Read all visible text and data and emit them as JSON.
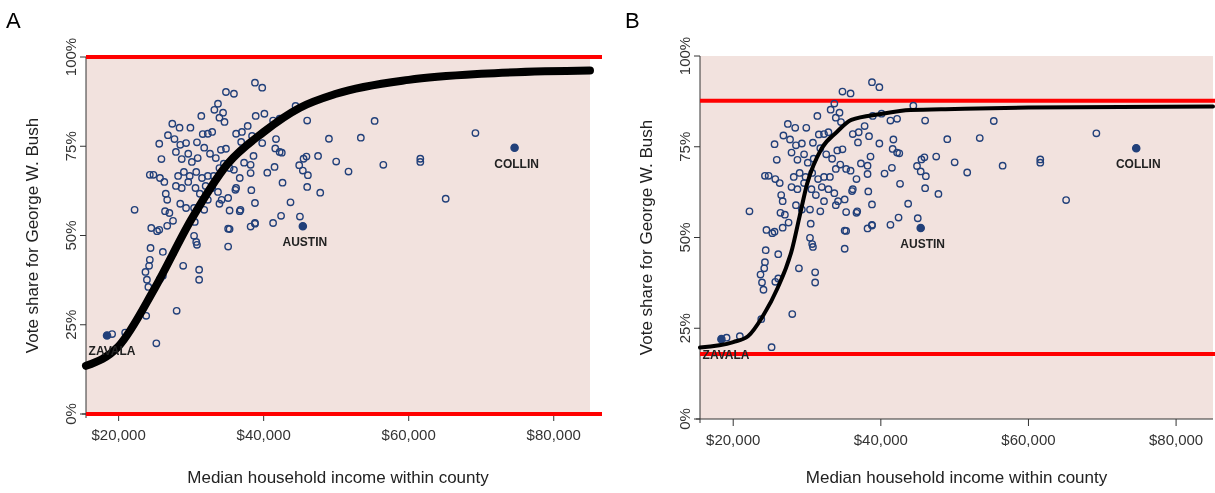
{
  "chart_data": [
    {
      "type": "scatter",
      "title": "A",
      "xlabel": "Median household income within county",
      "ylabel": "Vote share for George W. Bush",
      "xlim": [
        15500,
        85000
      ],
      "ylim": [
        0,
        100
      ],
      "xticks": [
        {
          "value": 20000,
          "label": "$20,000"
        },
        {
          "value": 40000,
          "label": "$40,000"
        },
        {
          "value": 60000,
          "label": "$60,000"
        },
        {
          "value": 80000,
          "label": "$80,000"
        }
      ],
      "yticks": [
        {
          "value": 0,
          "label": "0%"
        },
        {
          "value": 25,
          "label": "25%"
        },
        {
          "value": 50,
          "label": "50%"
        },
        {
          "value": 75,
          "label": "75%"
        },
        {
          "value": 100,
          "label": "100%"
        }
      ],
      "grid": false,
      "ref_lines": [
        {
          "axis": "y",
          "value": 0,
          "color": "#ff0000"
        },
        {
          "axis": "y",
          "value": 100,
          "color": "#ff0000"
        }
      ],
      "annotations": [
        {
          "text": "ZAVALA",
          "x": 18400,
          "y": 22
        },
        {
          "text": "AUSTIN",
          "x": 45400,
          "y": 52.6
        },
        {
          "text": "COLLIN",
          "x": 74600,
          "y": 74.6
        }
      ],
      "series": [
        {
          "marker": "circle",
          "color": "#22407a",
          "x": [
            69200,
            65100,
            61600,
            61600,
            56500,
            55300,
            53400,
            51700,
            50000,
            49000,
            47800,
            47500,
            46000,
            44400,
            46100,
            46000,
            45900,
            45500,
            44900,
            45400,
            45000,
            43700,
            42600,
            42400,
            41300,
            41500,
            42200,
            42500,
            41700,
            41600,
            40500,
            41300,
            40100,
            42200,
            39800,
            39800,
            38800,
            38900,
            38800,
            38800,
            38200,
            38300,
            38200,
            38600,
            38200,
            37300,
            36900,
            36800,
            36100,
            35300,
            35100,
            35300,
            34800,
            35900,
            22200,
            24300,
            24800,
            25600,
            25900,
            25700,
            26300,
            26500,
            26700,
            26400,
            27000,
            27400,
            26800,
            27700,
            28400,
            29900,
            31400,
            32300,
            33700,
            33900,
            34400,
            34600,
            33200,
            32900,
            31600,
            30800,
            29300,
            28500,
            27900,
            28700,
            29600,
            30100,
            30900,
            31800,
            32600,
            33400,
            34100,
            34800,
            34500,
            35300,
            36200,
            37000,
            37800,
            38400,
            33900,
            33100,
            32300,
            31500,
            30700,
            29800,
            29000,
            28200,
            27900,
            28700,
            29600,
            30600,
            31200,
            32000,
            32900,
            33700,
            34200,
            35100,
            36200,
            36700,
            35900,
            28500,
            29300,
            30400,
            31800,
            32300,
            33900,
            27500,
            26700,
            25600,
            24500,
            25300,
            24400,
            26100,
            24300,
            24200,
            23700,
            23900,
            24100,
            25700,
            26100,
            23800,
            28000,
            28900,
            30400,
            30700,
            30800,
            31100,
            31100,
            30500,
            25200,
            20900,
            19100,
            35100,
            36700,
            38800
          ],
          "values": [
            78.7,
            60.3,
            71.5,
            70.6,
            69.8,
            82.1,
            77.4,
            67.9,
            70.7,
            77.1,
            62,
            72.3,
            82.2,
            86.3,
            66.9,
            63.6,
            72.1,
            71.5,
            69.7,
            68.2,
            55.3,
            59.3,
            64.8,
            55.5,
            53.5,
            69.2,
            73.4,
            73.2,
            77,
            74.4,
            67.6,
            82.2,
            84.1,
            82.7,
            75.9,
            91.4,
            92.8,
            83.5,
            59.1,
            53.5,
            52.5,
            62.7,
            67.5,
            72.3,
            69.8,
            70.4,
            76.2,
            57.2,
            62.8,
            51.8,
            46.9,
            57,
            90.2,
            89.7,
            57.2,
            67,
            67,
            75.7,
            71.4,
            66.1,
            65,
            61.7,
            60,
            56.8,
            56.3,
            81.3,
            78.1,
            77,
            80.2,
            80.2,
            83.5,
            78.5,
            86.9,
            83,
            84.4,
            81.8,
            85.2,
            79,
            78.4,
            76.1,
            75.9,
            75.4,
            73.4,
            71.4,
            72.9,
            70.6,
            71.7,
            74.6,
            72.9,
            71.7,
            74,
            74.3,
            70.1,
            68.9,
            78.5,
            79,
            80.7,
            77.9,
            68.9,
            66.7,
            66.7,
            66.1,
            67.8,
            66.7,
            67.8,
            66.7,
            63.9,
            63.3,
            65,
            63.3,
            61.7,
            63.9,
            63.3,
            62.2,
            60,
            60.5,
            63.3,
            66.1,
            68.4,
            58.9,
            57.7,
            57.7,
            57.2,
            60,
            58.9,
            54.1,
            52.7,
            51.6,
            52.1,
            51.2,
            46.5,
            45.4,
            43.2,
            41.5,
            39.8,
            37.6,
            35.6,
            37.8,
            38.7,
            27.5,
            28.9,
            41.5,
            49.9,
            48.2,
            47.4,
            40.4,
            37.6,
            53.8,
            19.8,
            22.8,
            22.4,
            51.9,
            56.8,
            53.3
          ]
        },
        {
          "marker": "circle",
          "color": "#22407a",
          "x": [
            18400,
            45400,
            74600
          ],
          "values": [
            22,
            52.6,
            74.6
          ]
        },
        {
          "type": "line",
          "color": "#000000",
          "x": [
            15500,
            20000,
            25000,
            30000,
            35000,
            40000,
            45000,
            50000,
            60000,
            70000,
            85000
          ],
          "values": [
            13.5,
            19,
            35.3,
            54.4,
            70,
            79,
            85.8,
            89.7,
            93.6,
            95.3,
            96.2
          ]
        }
      ]
    },
    {
      "type": "scatter",
      "title": "B",
      "xlabel": "Median household income within county",
      "ylabel": "Vote share for George W. Bush",
      "xlim": [
        15500,
        85000
      ],
      "ylim": [
        0,
        100
      ],
      "xticks": [
        {
          "value": 20000,
          "label": "$20,000"
        },
        {
          "value": 40000,
          "label": "$40,000"
        },
        {
          "value": 60000,
          "label": "$60,000"
        },
        {
          "value": 80000,
          "label": "$80,000"
        }
      ],
      "yticks": [
        {
          "value": 0,
          "label": "0%"
        },
        {
          "value": 25,
          "label": "25%"
        },
        {
          "value": 50,
          "label": "50%"
        },
        {
          "value": 75,
          "label": "75%"
        },
        {
          "value": 100,
          "label": "100%"
        }
      ],
      "grid": false,
      "ref_lines": [
        {
          "axis": "y",
          "value": 87.7,
          "color": "#ff0000"
        },
        {
          "axis": "y",
          "value": 17.9,
          "color": "#ff0000"
        }
      ],
      "annotations": [
        {
          "text": "ZAVALA",
          "x": 18400,
          "y": 22
        },
        {
          "text": "AUSTIN",
          "x": 45400,
          "y": 52.6
        },
        {
          "text": "COLLIN",
          "x": 74600,
          "y": 74.6
        }
      ],
      "series": [
        {
          "marker": "circle",
          "color": "#22407a",
          "x": [
            69200,
            65100,
            61600,
            61600,
            56500,
            55300,
            53400,
            51700,
            50000,
            49000,
            47800,
            47500,
            46000,
            44400,
            46100,
            46000,
            45900,
            45500,
            44900,
            45400,
            45000,
            43700,
            42600,
            42400,
            41300,
            41500,
            42200,
            42500,
            41700,
            41600,
            40500,
            41300,
            40100,
            42200,
            39800,
            39800,
            38800,
            38900,
            38800,
            38800,
            38200,
            38300,
            38200,
            38600,
            38200,
            37300,
            36900,
            36800,
            36100,
            35300,
            35100,
            35300,
            34800,
            35900,
            22200,
            24300,
            24800,
            25600,
            25900,
            25700,
            26300,
            26500,
            26700,
            26400,
            27000,
            27400,
            26800,
            27700,
            28400,
            29900,
            31400,
            32300,
            33700,
            33900,
            34400,
            34600,
            33200,
            32900,
            31600,
            30800,
            29300,
            28500,
            27900,
            28700,
            29600,
            30100,
            30900,
            31800,
            32600,
            33400,
            34100,
            34800,
            34500,
            35300,
            36200,
            37000,
            37800,
            38400,
            33900,
            33100,
            32300,
            31500,
            30700,
            29800,
            29000,
            28200,
            27900,
            28700,
            29600,
            30600,
            31200,
            32000,
            32900,
            33700,
            34200,
            35100,
            36200,
            36700,
            35900,
            28500,
            29300,
            30400,
            31800,
            32300,
            33900,
            27500,
            26700,
            25600,
            24500,
            25300,
            24400,
            26100,
            24300,
            24200,
            23700,
            23900,
            24100,
            25700,
            26100,
            23800,
            28000,
            28900,
            30400,
            30700,
            30800,
            31100,
            31100,
            30500,
            25200,
            20900,
            19100,
            35100,
            36700,
            38800
          ],
          "values": [
            78.7,
            60.3,
            71.5,
            70.6,
            69.8,
            82.1,
            77.4,
            67.9,
            70.7,
            77.1,
            62,
            72.3,
            82.2,
            86.3,
            66.9,
            63.6,
            72.1,
            71.5,
            69.7,
            68.2,
            55.3,
            59.3,
            64.8,
            55.5,
            53.5,
            69.2,
            73.4,
            73.2,
            77,
            74.4,
            67.6,
            82.2,
            84.1,
            82.7,
            75.9,
            91.4,
            92.8,
            83.5,
            59.1,
            53.5,
            52.5,
            62.7,
            67.5,
            72.3,
            69.8,
            70.4,
            76.2,
            57.2,
            62.8,
            51.8,
            46.9,
            57,
            90.2,
            89.7,
            57.2,
            67,
            67,
            75.7,
            71.4,
            66.1,
            65,
            61.7,
            60,
            56.8,
            56.3,
            81.3,
            78.1,
            77,
            80.2,
            80.2,
            83.5,
            78.5,
            86.9,
            83,
            84.4,
            81.8,
            85.2,
            79,
            78.4,
            76.1,
            75.9,
            75.4,
            73.4,
            71.4,
            72.9,
            70.6,
            71.7,
            74.6,
            72.9,
            71.7,
            74,
            74.3,
            70.1,
            68.9,
            78.5,
            79,
            80.7,
            77.9,
            68.9,
            66.7,
            66.7,
            66.1,
            67.8,
            66.7,
            67.8,
            66.7,
            63.9,
            63.3,
            65,
            63.3,
            61.7,
            63.9,
            63.3,
            62.2,
            60,
            60.5,
            63.3,
            66.1,
            68.4,
            58.9,
            57.7,
            57.7,
            57.2,
            60,
            58.9,
            54.1,
            52.7,
            51.6,
            52.1,
            51.2,
            46.5,
            45.4,
            43.2,
            41.5,
            39.8,
            37.6,
            35.6,
            37.8,
            38.7,
            27.5,
            28.9,
            41.5,
            49.9,
            48.2,
            47.4,
            40.4,
            37.6,
            53.8,
            19.8,
            22.8,
            22.4,
            51.9,
            56.8,
            53.3
          ]
        },
        {
          "marker": "circle",
          "color": "#22407a",
          "x": [
            18400,
            45400,
            74600
          ],
          "values": [
            22,
            52.6,
            74.6
          ]
        },
        {
          "type": "line",
          "color": "#000000",
          "x": [
            15500,
            20000,
            22000,
            24000,
            26000,
            28000,
            29000,
            30000,
            32000,
            34000,
            36000,
            40000,
            44000,
            50000,
            60000,
            85000
          ],
          "values": [
            19.7,
            21.2,
            22.8,
            28.3,
            36,
            47,
            55.9,
            64.7,
            74.6,
            79,
            82.4,
            84,
            85.1,
            85.4,
            85.8,
            86.1
          ]
        }
      ]
    }
  ]
}
